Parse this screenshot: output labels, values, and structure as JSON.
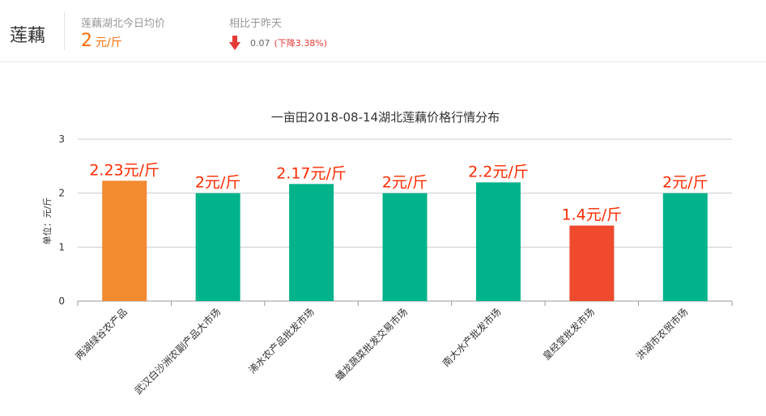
{
  "header": {
    "product": "莲藕",
    "avg_label": "莲藕湖北今日均价",
    "avg_value": "2",
    "avg_unit": "元/斤",
    "compare_label": "相比于昨天",
    "change_value": "0.07",
    "change_percent": "(下降3.38%)",
    "change_direction_icon": "arrow-down-icon"
  },
  "colors": {
    "highest": "#f28a30",
    "normal": "#00b38a",
    "lowest": "#f04a2e",
    "accent": "#ff6a00",
    "decrease": "#e53935",
    "label": "#ff2a00"
  },
  "chart_data": {
    "type": "bar",
    "title": "一亩田2018-08-14湖北莲藕价格行情分布",
    "ylabel": "单位：元/斤",
    "ylim": [
      0,
      3
    ],
    "yticks": [
      0,
      1,
      2,
      3
    ],
    "grid": true,
    "categories": [
      "两湖绿谷农产品",
      "武汉白沙洲农副产品大市场",
      "浠水农产品批发市场",
      "蟠龙蔬菜批发交易市场",
      "南大水产批发市场",
      "皇经堂批发市场",
      "洪湖市农贸市场"
    ],
    "values": [
      2.23,
      2,
      2.17,
      2,
      2.2,
      1.4,
      2
    ],
    "value_labels": [
      "2.23元/斤",
      "2元/斤",
      "2.17元/斤",
      "2元/斤",
      "2.2元/斤",
      "1.4元/斤",
      "2元/斤"
    ],
    "bar_colors": [
      "#f28a30",
      "#00b38a",
      "#00b38a",
      "#00b38a",
      "#00b38a",
      "#f04a2e",
      "#00b38a"
    ]
  }
}
